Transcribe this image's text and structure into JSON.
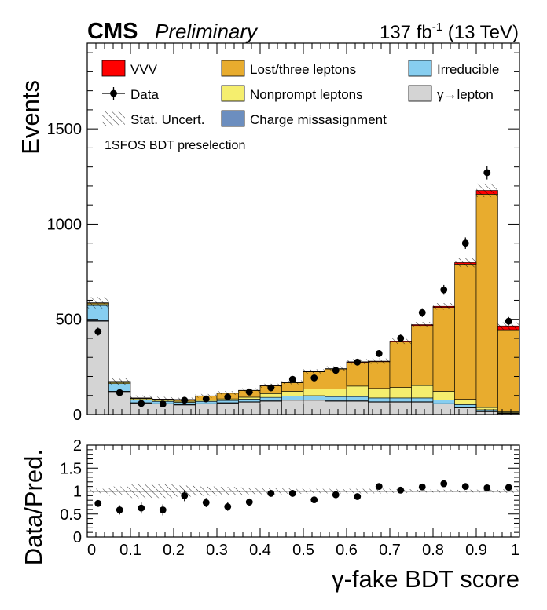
{
  "header": {
    "experiment": "CMS",
    "status": "Preliminary",
    "lumi_value": "137 fb",
    "lumi_exp": "-1",
    "lumi_energy": " (13 TeV)"
  },
  "chart_data": {
    "type": "bar",
    "stacked": true,
    "annotation": "1SFOS BDT preselection",
    "xlabel": "γ-fake BDT score",
    "ylabel": "Events",
    "ratio_ylabel": "Data/Pred.",
    "xlim": [
      0,
      1
    ],
    "ylim": [
      0,
      1950
    ],
    "ratio_ylim": [
      0,
      2
    ],
    "x_ticks": [
      "0",
      "0.1",
      "0.2",
      "0.3",
      "0.4",
      "0.5",
      "0.6",
      "0.7",
      "0.8",
      "0.9",
      "1"
    ],
    "y_ticks": [
      "0",
      "500",
      "1000",
      "1500"
    ],
    "ratio_ticks": [
      "0",
      "0.5",
      "1",
      "1.5",
      "2"
    ],
    "bin_edges": [
      0.0,
      0.05,
      0.1,
      0.15,
      0.2,
      0.25,
      0.3,
      0.35,
      0.4,
      0.45,
      0.5,
      0.55,
      0.6,
      0.65,
      0.7,
      0.75,
      0.8,
      0.85,
      0.9,
      0.95,
      1.0
    ],
    "series": [
      {
        "name": "γ→lepton",
        "color": "#d4d4d4",
        "values": [
          490,
          120,
          60,
          55,
          50,
          55,
          60,
          65,
          70,
          75,
          75,
          70,
          70,
          65,
          65,
          65,
          55,
          35,
          15,
          5
        ]
      },
      {
        "name": "Charge missasignment",
        "color": "#6c8ebf",
        "values": [
          3,
          2,
          2,
          2,
          2,
          2,
          2,
          2,
          2,
          2,
          2,
          2,
          2,
          2,
          2,
          2,
          2,
          2,
          2,
          2
        ]
      },
      {
        "name": "Irreducible",
        "color": "#87cef0",
        "values": [
          80,
          40,
          15,
          12,
          12,
          12,
          12,
          14,
          18,
          20,
          22,
          22,
          22,
          20,
          20,
          20,
          20,
          15,
          8,
          3
        ]
      },
      {
        "name": "Nonprompt leptons",
        "color": "#f5ee6e",
        "values": [
          8,
          6,
          6,
          6,
          6,
          6,
          8,
          10,
          20,
          25,
          35,
          40,
          55,
          50,
          55,
          65,
          45,
          28,
          12,
          5
        ]
      },
      {
        "name": "Lost/three leptons",
        "color": "#e8ac2e",
        "values": [
          5,
          5,
          3,
          5,
          8,
          22,
          30,
          35,
          40,
          45,
          90,
          105,
          125,
          140,
          240,
          315,
          440,
          710,
          1120,
          430
        ]
      },
      {
        "name": "VVV",
        "color": "#ff0000",
        "values": [
          1,
          1,
          1,
          1,
          1,
          1,
          1,
          1,
          1,
          2,
          2,
          2,
          3,
          3,
          4,
          5,
          6,
          8,
          20,
          20
        ]
      }
    ],
    "data": {
      "name": "Data",
      "values": [
        435,
        115,
        58,
        55,
        75,
        82,
        92,
        118,
        140,
        185,
        192,
        232,
        275,
        320,
        400,
        535,
        655,
        900,
        1270,
        490
      ],
      "ratio": [
        0.73,
        0.59,
        0.63,
        0.59,
        0.9,
        0.75,
        0.66,
        0.76,
        0.95,
        0.95,
        0.81,
        0.92,
        0.88,
        1.1,
        1.02,
        1.09,
        1.16,
        1.1,
        1.07,
        1.08
      ],
      "ratio_err": [
        0.06,
        0.1,
        0.12,
        0.12,
        0.12,
        0.1,
        0.09,
        0.08,
        0.07,
        0.07,
        0.06,
        0.06,
        0.05,
        0.05,
        0.05,
        0.04,
        0.04,
        0.03,
        0.03,
        0.05
      ]
    },
    "stat_uncert_rel": [
      0.05,
      0.1,
      0.15,
      0.15,
      0.12,
      0.1,
      0.09,
      0.08,
      0.07,
      0.06,
      0.05,
      0.05,
      0.05,
      0.05,
      0.04,
      0.03,
      0.03,
      0.03,
      0.03,
      0.04
    ],
    "legend": {
      "placement": "top",
      "entries": [
        {
          "label": "VVV",
          "kind": "fill",
          "color": "#ff0000"
        },
        {
          "label": "Lost/three leptons",
          "kind": "fill",
          "color": "#e8ac2e"
        },
        {
          "label": "Irreducible",
          "kind": "fill",
          "color": "#87cef0"
        },
        {
          "label": "Data",
          "kind": "marker"
        },
        {
          "label": "Nonprompt leptons",
          "kind": "fill",
          "color": "#f5ee6e"
        },
        {
          "label": "γ→lepton",
          "kind": "fill",
          "color": "#d4d4d4"
        },
        {
          "label": "Stat. Uncert.",
          "kind": "hatch"
        },
        {
          "label": "Charge missasignment",
          "kind": "fill",
          "color": "#6c8ebf"
        }
      ]
    }
  }
}
